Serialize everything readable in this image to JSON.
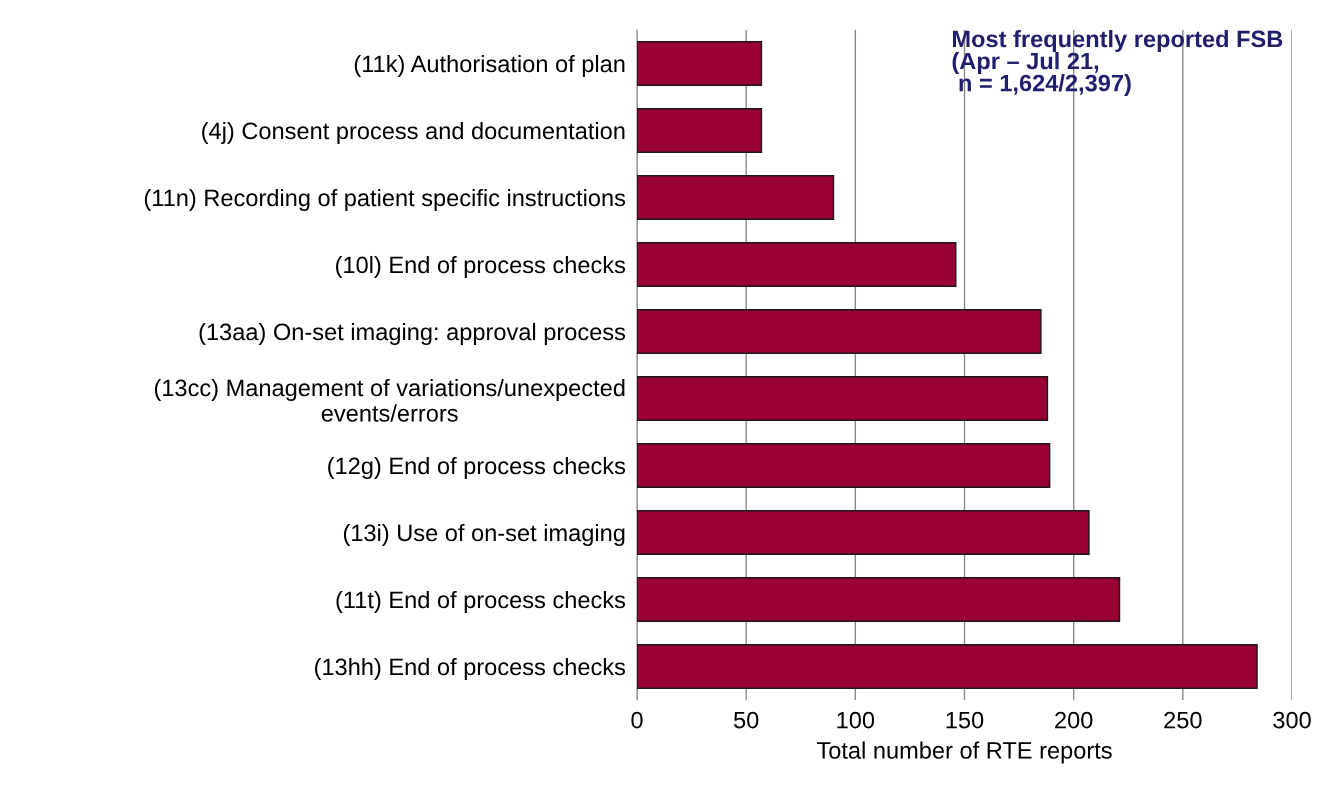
{
  "chart_data": {
    "type": "bar",
    "orientation": "horizontal",
    "title": "Most frequently reported FSB\n(Apr – Jul 21,\n n = 1,624/2,397)",
    "xlabel": "Total number of RTE reports",
    "categories": [
      "(11k) Authorisation of plan",
      "(4j) Consent process and documentation",
      "(11n) Recording of patient specific instructions",
      "(10l) End of process checks",
      "(13aa) On-set imaging: approval process",
      "(13cc) Management of variations/unexpected\nevents/errors",
      "(12g) End of process checks",
      "(13i) Use of on-set imaging",
      "(11t) End of process checks",
      "(13hh) End of process checks"
    ],
    "values": [
      57,
      57,
      90,
      146,
      185,
      188,
      189,
      207,
      221,
      284
    ],
    "color": "#990033",
    "xlim": [
      0,
      300
    ],
    "xticks": [
      0,
      50,
      100,
      150,
      200,
      250,
      300
    ],
    "grid": "x"
  }
}
